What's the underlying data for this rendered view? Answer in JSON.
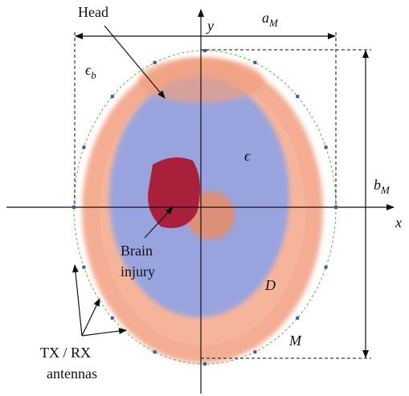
{
  "labels": {
    "head": "Head",
    "y_axis": "y",
    "x_axis": "x",
    "a": {
      "base": "a",
      "sub": "M"
    },
    "b": {
      "base": "b",
      "sub": "M"
    },
    "eps_b": {
      "base": "ϵ",
      "sub": "b"
    },
    "eps": "ϵ",
    "injury": [
      "Brain",
      "injury"
    ],
    "domain": "D",
    "boundary": "M",
    "antennas": [
      "TX / RX",
      "antennas"
    ]
  }
}
